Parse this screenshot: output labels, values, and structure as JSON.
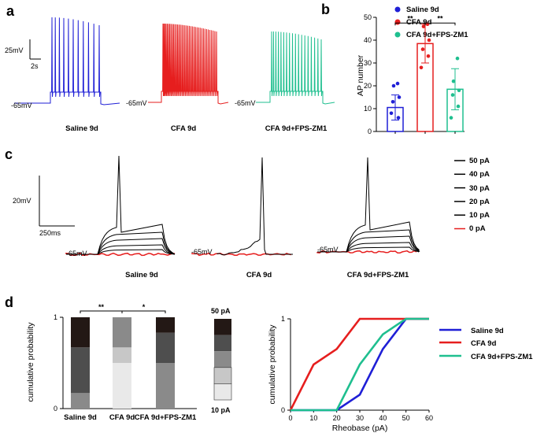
{
  "panels": {
    "a": "a",
    "b": "b",
    "c": "c",
    "d": "d"
  },
  "colors": {
    "saline": "#1f1fd6",
    "cfa": "#e61e1e",
    "cfa_zm1": "#1fbf8f",
    "trace_black": "#000000"
  },
  "panel_a": {
    "scale_v": "25mV",
    "scale_t": "2s",
    "rest": [
      "-65mV",
      "-65mV",
      "-65mV"
    ],
    "groups": [
      "Saline 9d",
      "CFA 9d",
      "CFA 9d+FPS-ZM1"
    ],
    "spike_counts": [
      11,
      38,
      18
    ]
  },
  "panel_c": {
    "scale_v": "20mV",
    "scale_t": "250ms",
    "rest": [
      "-65mV",
      "-65mV",
      "-65mV"
    ],
    "groups": [
      "Saline 9d",
      "CFA 9d",
      "CFA 9d+FPS-ZM1"
    ],
    "legend": [
      "50 pA",
      "40 pA",
      "30 pA",
      "20 pA",
      "10 pA",
      "0  pA"
    ]
  },
  "panel_d_bar_scale": {
    "top": "50 pA",
    "bottom": "10 pA"
  },
  "chart_data": [
    {
      "type": "bar",
      "panel": "b",
      "ylabel": "AP number",
      "ylim": [
        0,
        50
      ],
      "yticks": [
        0,
        10,
        20,
        30,
        40,
        50
      ],
      "categories": [
        "Saline 9d",
        "CFA 9d",
        "CFA 9d+FPS-ZM1"
      ],
      "values": [
        10.5,
        38.5,
        18.5
      ],
      "errors": [
        5.5,
        8.5,
        9
      ],
      "points": [
        [
          8,
          6,
          13,
          15,
          20,
          21
        ],
        [
          28,
          33,
          36,
          40,
          46,
          47
        ],
        [
          6,
          11,
          16,
          18,
          22,
          32
        ]
      ],
      "significance": [
        {
          "pair": [
            0,
            1
          ],
          "label": "**"
        },
        {
          "pair": [
            1,
            2
          ],
          "label": "**"
        }
      ],
      "legend": [
        "Saline 9d",
        "CFA 9d",
        "CFA 9d+FPS-ZM1"
      ]
    },
    {
      "type": "bar",
      "panel": "d-left",
      "stacked": true,
      "ylabel": "cumulative probability",
      "yticks": [
        0,
        1
      ],
      "categories": [
        "Saline 9d",
        "CFA 9d",
        "CFA 9d+FPS-ZM1"
      ],
      "series": [
        {
          "name": "10 pA",
          "values": [
            0,
            0.5,
            0
          ]
        },
        {
          "name": "20 pA",
          "values": [
            0,
            0.17,
            0
          ]
        },
        {
          "name": "30 pA",
          "values": [
            0.17,
            0.33,
            0.5
          ]
        },
        {
          "name": "40 pA",
          "values": [
            0.5,
            0,
            0.33
          ]
        },
        {
          "name": "50 pA",
          "values": [
            0.33,
            0,
            0.17
          ]
        }
      ],
      "significance": [
        {
          "pair": [
            0,
            1
          ],
          "label": "**"
        },
        {
          "pair": [
            1,
            2
          ],
          "label": "*"
        }
      ]
    },
    {
      "type": "line",
      "panel": "d-right",
      "xlabel": "Rheobase (pA)",
      "ylabel": "cumulative probability",
      "xlim": [
        0,
        60
      ],
      "ylim": [
        0,
        1
      ],
      "xticks": [
        0,
        10,
        20,
        30,
        40,
        50,
        60
      ],
      "yticks": [
        0,
        1
      ],
      "x": [
        0,
        10,
        20,
        30,
        40,
        50,
        60
      ],
      "series": [
        {
          "name": "Saline 9d",
          "values": [
            0,
            0,
            0,
            0.17,
            0.67,
            1,
            1
          ]
        },
        {
          "name": "CFA 9d",
          "values": [
            0,
            0.5,
            0.67,
            1,
            1,
            1,
            1
          ]
        },
        {
          "name": "CFA 9d+FPS-ZM1",
          "values": [
            0,
            0,
            0,
            0.5,
            0.83,
            1,
            1
          ]
        }
      ]
    }
  ]
}
